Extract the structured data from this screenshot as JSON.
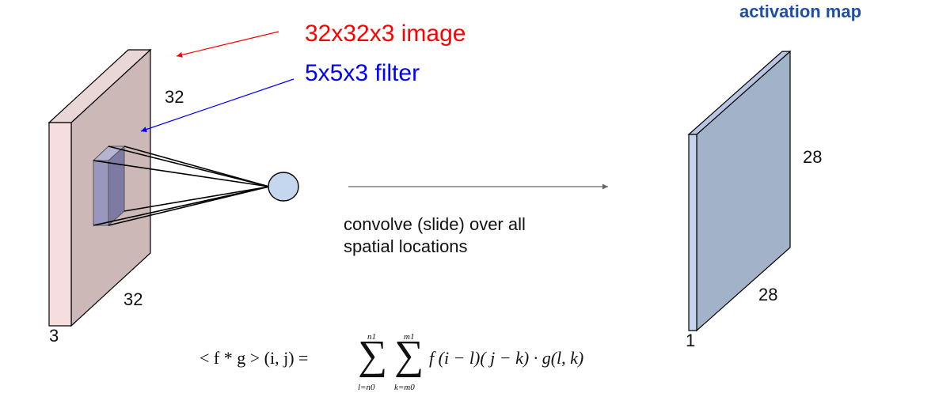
{
  "input_volume": {
    "title": "32x32x3 image",
    "title_color": "#ff0000",
    "width_label": "32",
    "height_label": "32",
    "depth_label": "3",
    "front_face_color": "#f6dede",
    "face_color": "#cdb8b8"
  },
  "filter": {
    "title": "5x5x3 filter",
    "title_color": "#0000ff",
    "color": "#9a97bf"
  },
  "neuron": {
    "color": "#c5d6ef"
  },
  "operation": {
    "caption_line1": "convolve (slide) over all",
    "caption_line2": "spatial locations"
  },
  "output_map": {
    "heading": "activation map",
    "heading_color": "#1f4ea8",
    "width_label": "28",
    "height_label": "28",
    "depth_label": "1",
    "front_face_color": "#c6d3ee",
    "face_color": "#a2b2c8"
  },
  "formula": {
    "lhs": "< f * g > (i, j) =",
    "sum1_upper": "n1",
    "sum1_lower": "l=n0",
    "sum2_upper": "m1",
    "sum2_lower": "k=m0",
    "rhs": "f (i − l)( j − k) · g(l, k)"
  }
}
